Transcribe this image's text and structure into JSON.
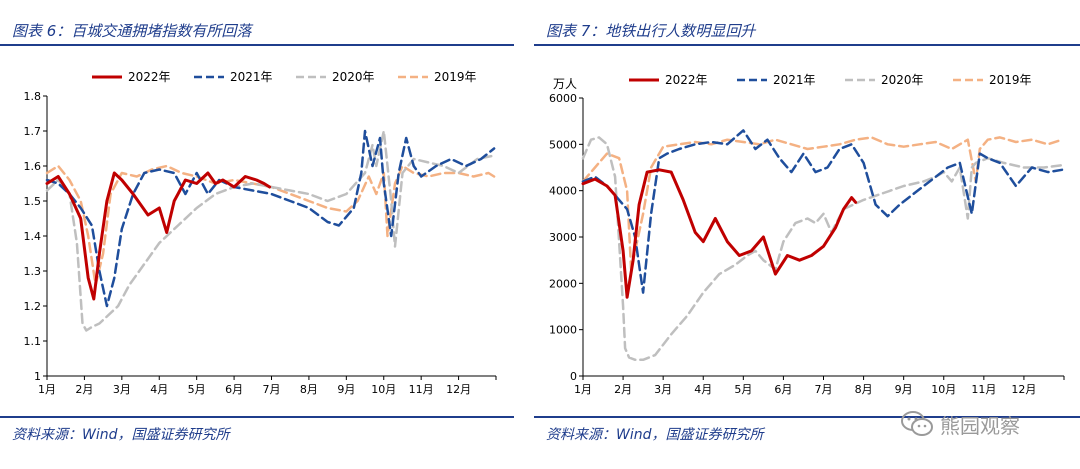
{
  "left": {
    "title": "图表 6：百城交通拥堵指数有所回落",
    "source": "资料来源：Wind，国盛证券研究所"
  },
  "right": {
    "title": "图表 7：地铁出行人数明显回升",
    "source": "资料来源：Wind，国盛证券研究所"
  },
  "watermark": "熊园观察",
  "colors": {
    "2022": "#c00000",
    "2021": "#1f4e9c",
    "2020": "#bfbfbf",
    "2019": "#f4b183",
    "frame": "#1f3d8c"
  },
  "chart_data": [
    {
      "type": "line",
      "title": "",
      "ylabel": "",
      "ylim": [
        1.0,
        1.8
      ],
      "yticks": [
        "1",
        "1.1",
        "1.2",
        "1.3",
        "1.4",
        "1.5",
        "1.6",
        "1.7",
        "1.8"
      ],
      "categories": [
        "1月",
        "2月",
        "3月",
        "4月",
        "5月",
        "6月",
        "7月",
        "8月",
        "9月",
        "10月",
        "11月",
        "12月"
      ],
      "legend": "top",
      "series": [
        {
          "name": "2022年",
          "style": "solid",
          "x": [
            0,
            0.3,
            0.6,
            0.9,
            1.1,
            1.25,
            1.4,
            1.6,
            1.8,
            2.0,
            2.3,
            2.7,
            3.0,
            3.2,
            3.4,
            3.5,
            3.7,
            4.0,
            4.3,
            4.5,
            4.7,
            5.0,
            5.3,
            5.6,
            5.8,
            5.95
          ],
          "values": [
            1.55,
            1.57,
            1.52,
            1.45,
            1.28,
            1.22,
            1.35,
            1.5,
            1.58,
            1.56,
            1.52,
            1.46,
            1.48,
            1.41,
            1.5,
            1.52,
            1.56,
            1.55,
            1.58,
            1.55,
            1.56,
            1.54,
            1.57,
            1.56,
            1.55,
            1.54
          ]
        },
        {
          "name": "2021年",
          "style": "dash",
          "x": [
            0,
            0.3,
            0.6,
            0.9,
            1.2,
            1.4,
            1.6,
            1.8,
            2.0,
            2.3,
            2.6,
            3.0,
            3.4,
            3.7,
            4.0,
            4.3,
            4.6,
            5.0,
            5.5,
            6.0,
            6.5,
            7.0,
            7.5,
            7.8,
            8.2,
            8.4,
            8.5,
            8.7,
            8.9,
            9.0,
            9.2,
            9.4,
            9.6,
            9.8,
            10.0,
            10.4,
            10.8,
            11.2,
            11.6,
            11.95
          ],
          "values": [
            1.56,
            1.55,
            1.52,
            1.48,
            1.43,
            1.3,
            1.2,
            1.28,
            1.42,
            1.52,
            1.58,
            1.59,
            1.58,
            1.52,
            1.58,
            1.52,
            1.56,
            1.54,
            1.53,
            1.52,
            1.5,
            1.48,
            1.44,
            1.43,
            1.48,
            1.58,
            1.7,
            1.6,
            1.68,
            1.55,
            1.4,
            1.58,
            1.68,
            1.6,
            1.57,
            1.6,
            1.62,
            1.6,
            1.62,
            1.65
          ]
        },
        {
          "name": "2020年",
          "style": "dash",
          "x": [
            0,
            0.3,
            0.6,
            0.8,
            0.95,
            1.05,
            1.2,
            1.4,
            1.6,
            1.9,
            2.2,
            2.6,
            3.0,
            3.5,
            4.0,
            4.5,
            5.0,
            5.5,
            6.0,
            6.5,
            7.0,
            7.5,
            8.0,
            8.5,
            8.7,
            8.8,
            9.0,
            9.2,
            9.3,
            9.5,
            9.8,
            10.2,
            10.6,
            11.0,
            11.5,
            11.95
          ],
          "values": [
            1.53,
            1.56,
            1.52,
            1.38,
            1.15,
            1.13,
            1.14,
            1.15,
            1.17,
            1.2,
            1.26,
            1.32,
            1.38,
            1.43,
            1.48,
            1.52,
            1.54,
            1.55,
            1.54,
            1.53,
            1.52,
            1.5,
            1.52,
            1.58,
            1.66,
            1.6,
            1.7,
            1.5,
            1.37,
            1.58,
            1.62,
            1.61,
            1.6,
            1.58,
            1.62,
            1.63
          ]
        },
        {
          "name": "2019年",
          "style": "dash",
          "x": [
            0,
            0.3,
            0.6,
            0.9,
            1.1,
            1.3,
            1.5,
            1.7,
            2.0,
            2.4,
            2.8,
            3.2,
            3.6,
            4.0,
            4.5,
            5.0,
            5.5,
            6.0,
            6.5,
            7.0,
            7.5,
            8.0,
            8.3,
            8.6,
            8.8,
            9.0,
            9.1,
            9.3,
            9.5,
            9.8,
            10.2,
            10.6,
            11.0,
            11.4,
            11.8,
            11.95
          ],
          "values": [
            1.58,
            1.6,
            1.56,
            1.5,
            1.4,
            1.26,
            1.35,
            1.52,
            1.58,
            1.57,
            1.59,
            1.6,
            1.58,
            1.57,
            1.55,
            1.56,
            1.55,
            1.54,
            1.52,
            1.5,
            1.48,
            1.47,
            1.5,
            1.57,
            1.52,
            1.58,
            1.4,
            1.55,
            1.6,
            1.58,
            1.57,
            1.58,
            1.58,
            1.57,
            1.58,
            1.57
          ]
        }
      ]
    },
    {
      "type": "line",
      "title": "",
      "ylabel": "万人",
      "ylim": [
        0,
        6000
      ],
      "yticks": [
        "0",
        "1000",
        "2000",
        "3000",
        "4000",
        "5000",
        "6000"
      ],
      "categories": [
        "1月",
        "2月",
        "3月",
        "4月",
        "5月",
        "6月",
        "7月",
        "8月",
        "9月",
        "10月",
        "11月",
        "12月"
      ],
      "legend": "top",
      "series": [
        {
          "name": "2022年",
          "style": "solid",
          "x": [
            0,
            0.3,
            0.6,
            0.8,
            1.0,
            1.1,
            1.25,
            1.4,
            1.6,
            1.9,
            2.2,
            2.5,
            2.8,
            3.0,
            3.3,
            3.6,
            3.9,
            4.2,
            4.5,
            4.8,
            5.1,
            5.4,
            5.7,
            6.0,
            6.3,
            6.5,
            6.7,
            6.8
          ],
          "values": [
            4150,
            4250,
            4100,
            3900,
            2700,
            1700,
            2500,
            3700,
            4400,
            4450,
            4400,
            3800,
            3100,
            2900,
            3400,
            2900,
            2600,
            2700,
            3000,
            2200,
            2600,
            2500,
            2600,
            2800,
            3200,
            3600,
            3850,
            3750
          ]
        },
        {
          "name": "2021年",
          "style": "dash",
          "x": [
            0,
            0.3,
            0.6,
            0.9,
            1.1,
            1.3,
            1.5,
            1.7,
            1.9,
            2.1,
            2.4,
            2.8,
            3.2,
            3.6,
            4.0,
            4.3,
            4.6,
            4.9,
            5.2,
            5.5,
            5.8,
            6.1,
            6.4,
            6.7,
            7.0,
            7.3,
            7.6,
            7.9,
            8.2,
            8.5,
            8.8,
            9.1,
            9.4,
            9.7,
            9.9,
            10.1,
            10.4,
            10.8,
            11.2,
            11.6,
            11.95
          ],
          "values": [
            4200,
            4300,
            4100,
            3800,
            3600,
            3000,
            1800,
            3500,
            4700,
            4800,
            4900,
            5000,
            5050,
            5000,
            5300,
            4900,
            5100,
            4700,
            4400,
            4800,
            4400,
            4500,
            4900,
            5000,
            4600,
            3700,
            3450,
            3700,
            3900,
            4100,
            4300,
            4500,
            4600,
            3500,
            4800,
            4700,
            4600,
            4100,
            4500,
            4400,
            4450
          ]
        },
        {
          "name": "2020年",
          "style": "dash",
          "x": [
            0,
            0.2,
            0.4,
            0.6,
            0.8,
            1.0,
            1.05,
            1.15,
            1.3,
            1.5,
            1.8,
            2.2,
            2.6,
            3.0,
            3.4,
            3.8,
            4.1,
            4.3,
            4.5,
            4.8,
            5.0,
            5.3,
            5.6,
            5.8,
            6.0,
            6.2,
            6.5,
            7.0,
            7.5,
            8.0,
            8.5,
            8.8,
            9.0,
            9.2,
            9.4,
            9.6,
            9.7,
            9.8,
            10.1,
            10.5,
            11.0,
            11.5,
            11.95
          ],
          "values": [
            4700,
            5100,
            5150,
            5000,
            4300,
            1500,
            600,
            400,
            350,
            350,
            450,
            900,
            1300,
            1800,
            2200,
            2400,
            2600,
            2700,
            2500,
            2300,
            2900,
            3300,
            3400,
            3300,
            3500,
            3100,
            3600,
            3800,
            3950,
            4100,
            4200,
            4300,
            4400,
            4200,
            4500,
            3400,
            4500,
            4600,
            4700,
            4600,
            4500,
            4500,
            4550
          ]
        },
        {
          "name": "2019年",
          "style": "dash",
          "x": [
            0,
            0.3,
            0.6,
            0.9,
            1.1,
            1.2,
            1.3,
            1.5,
            1.7,
            2.0,
            2.4,
            2.8,
            3.2,
            3.6,
            4.0,
            4.4,
            4.8,
            5.2,
            5.6,
            6.0,
            6.4,
            6.8,
            7.2,
            7.6,
            8.0,
            8.4,
            8.8,
            9.2,
            9.6,
            9.8,
            9.9,
            10.1,
            10.4,
            10.8,
            11.2,
            11.6,
            11.95
          ],
          "values": [
            4200,
            4500,
            4800,
            4700,
            4000,
            2300,
            2700,
            3500,
            4500,
            4950,
            5000,
            5050,
            5000,
            5100,
            5050,
            5000,
            5100,
            5000,
            4900,
            4950,
            5000,
            5100,
            5150,
            5000,
            4950,
            5000,
            5050,
            4900,
            5100,
            4200,
            4900,
            5100,
            5150,
            5050,
            5100,
            5000,
            5100
          ]
        }
      ]
    }
  ]
}
